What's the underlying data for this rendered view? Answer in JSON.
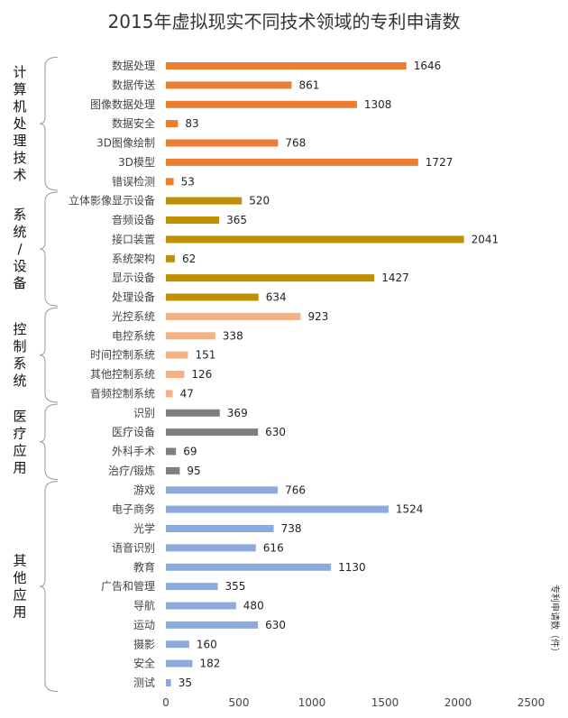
{
  "chart_data": {
    "type": "bar",
    "orientation": "horizontal",
    "title": "2015年虚拟现实不同技术领域的专利申请数",
    "xlabel": "专利申请数（件）",
    "xlim": [
      0,
      2500
    ],
    "xticks": [
      0,
      500,
      1000,
      1500,
      2000,
      2500
    ],
    "grid": false,
    "groups": [
      {
        "name": "计算机处理技术",
        "color": "#ed7d31",
        "categories": [
          "数据处理",
          "数据传送",
          "图像数据处理",
          "数据安全",
          "3D图像绘制",
          "3D模型",
          "错误检测"
        ],
        "values": [
          1646,
          861,
          1308,
          83,
          768,
          1727,
          53
        ]
      },
      {
        "name": "系统/设备",
        "color": "#bf9000",
        "categories": [
          "立体影像显示设备",
          "音频设备",
          "接口装置",
          "系统架构",
          "显示设备",
          "处理设备"
        ],
        "values": [
          520,
          365,
          2041,
          62,
          1427,
          634
        ]
      },
      {
        "name": "控制系统",
        "color": "#f4b183",
        "categories": [
          "光控系统",
          "电控系统",
          "时间控制系统",
          "其他控制系统",
          "音频控制系统"
        ],
        "values": [
          923,
          338,
          151,
          126,
          47
        ]
      },
      {
        "name": "医疗应用",
        "color": "#7f7f7f",
        "categories": [
          "识别",
          "医疗设备",
          "外科手术",
          "治疗/锻炼"
        ],
        "values": [
          369,
          630,
          69,
          95
        ]
      },
      {
        "name": "其他应用",
        "color": "#8eaadb",
        "categories": [
          "游戏",
          "电子商务",
          "光学",
          "语音识别",
          "教育",
          "广告和管理",
          "导航",
          "运动",
          "摄影",
          "安全",
          "测试"
        ],
        "values": [
          766,
          1524,
          738,
          616,
          1130,
          355,
          480,
          630,
          160,
          182,
          35
        ]
      }
    ]
  }
}
